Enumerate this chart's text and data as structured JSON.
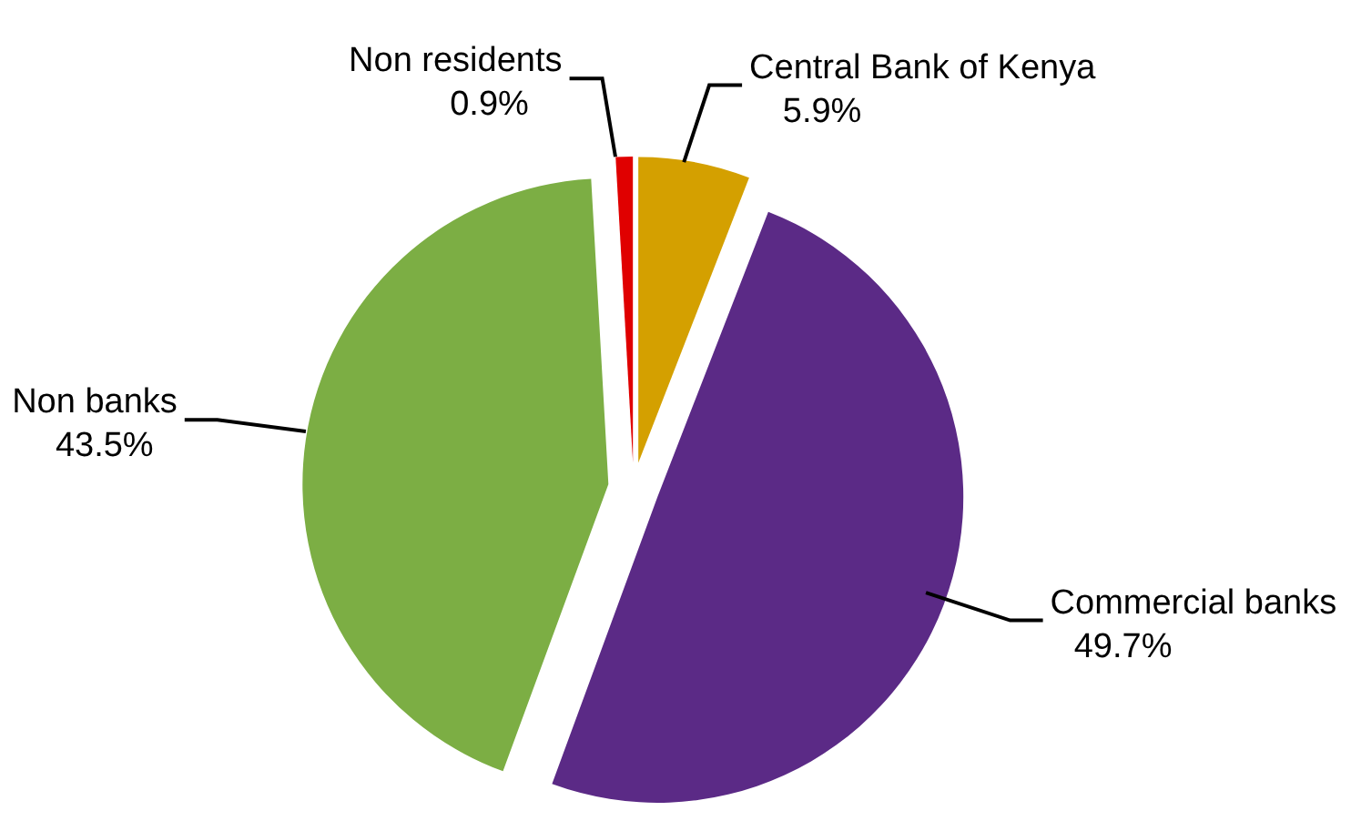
{
  "chart_data": {
    "type": "pie",
    "categories": [
      "Central Bank of Kenya",
      "Commercial banks",
      "Non banks",
      "Non residents"
    ],
    "values": [
      5.9,
      49.7,
      43.5,
      0.9
    ],
    "value_labels": [
      "5.9%",
      "49.7%",
      "43.5%",
      "0.9%"
    ],
    "colors": [
      "#d4a000",
      "#5b2a86",
      "#7cae44",
      "#e00000"
    ],
    "legend": false
  }
}
